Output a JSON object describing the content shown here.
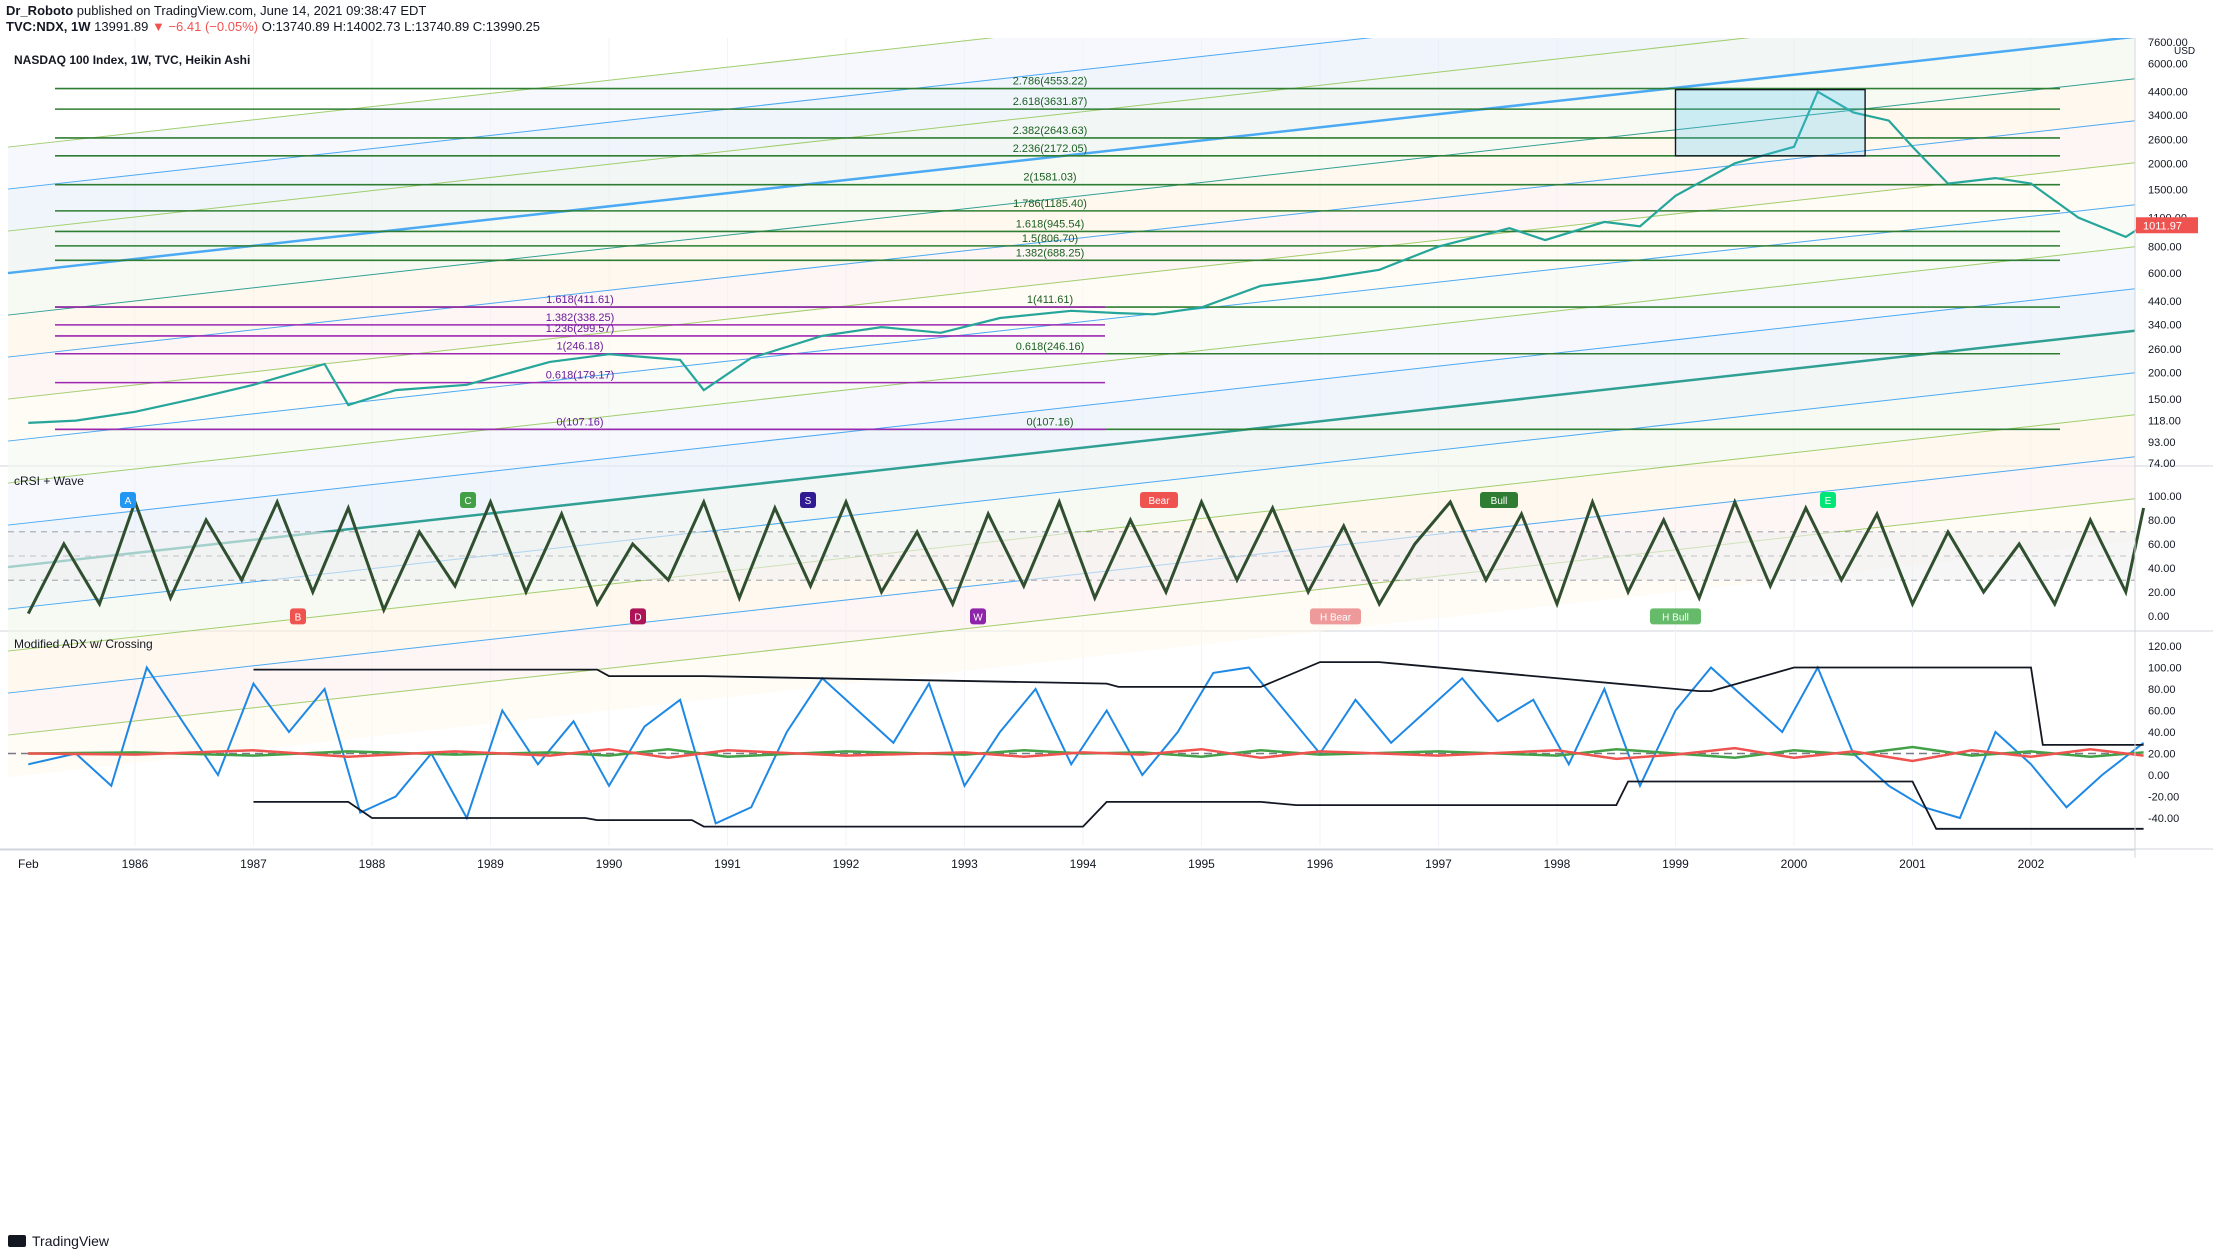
{
  "header": {
    "author": "Dr_Roboto",
    "published": "published on TradingView.com, June 14, 2021 09:38:47 EDT",
    "symbol_line": "TVC:NDX, 1W",
    "last": "13991.89",
    "change": "▼ −6.41 (−0.05%)",
    "ohlc": "O:13740.89 H:14002.73 L:13740.89 C:13990.25"
  },
  "footer": {
    "brand": "TradingView",
    "logo_icon": "tradingview-logo-icon"
  },
  "colors": {
    "grid": "#f0f3fa",
    "fib_green": "#2e7d32",
    "fib_purple": "#9c27b0",
    "fan_blue": "#2196f3",
    "fan_teal": "#00897b",
    "bull": "#26a69a",
    "bear": "#ef5350",
    "adx_blue": "#1e88e5",
    "rsi_line": "#2f4f2f"
  },
  "chart_data": [
    {
      "type": "line",
      "title": "NASDAQ 100 Index, 1W, TVC, Heikin Ashi",
      "xlabel": "",
      "ylabel": "",
      "scale": "log",
      "ylim": [
        74,
        7600
      ],
      "x_ticks": [
        "Feb",
        "1986",
        "1987",
        "1988",
        "1989",
        "1990",
        "1991",
        "1992",
        "1993",
        "1994",
        "1995",
        "1996",
        "1997",
        "1998",
        "1999",
        "2000",
        "2001",
        "2002"
      ],
      "y_ticks": [
        "7600.00",
        "6000.00",
        "4400.00",
        "3400.00",
        "2600.00",
        "2000.00",
        "1500.00",
        "1100.00",
        "800.00",
        "600.00",
        "440.00",
        "340.00",
        "260.00",
        "200.00",
        "150.00",
        "118.00",
        "93.00",
        "74.00"
      ],
      "currency_label": "USD",
      "last_price_label": "1011.97",
      "series": [
        {
          "x": [
            1985.1,
            1985.5,
            1986.0,
            1986.5,
            1987.0,
            1987.6,
            1987.8,
            1988.2,
            1988.8,
            1989.5,
            1990.0,
            1990.6,
            1990.8,
            1991.2,
            1991.8,
            1992.3,
            1992.8,
            1993.3,
            1993.9,
            1994.3,
            1994.6,
            1995.0,
            1995.5,
            1996.0,
            1996.5,
            1997.0,
            1997.6,
            1997.9,
            1998.4,
            1998.7,
            1999.0,
            1999.5,
            2000.0,
            2000.2,
            2000.5,
            2000.8,
            2001.0,
            2001.3,
            2001.7,
            2002.0,
            2002.4,
            2002.8,
            2002.95
          ],
          "y": [
            115,
            118,
            130,
            150,
            175,
            220,
            140,
            165,
            175,
            225,
            245,
            230,
            165,
            235,
            300,
            330,
            310,
            365,
            395,
            385,
            380,
            410,
            520,
            560,
            620,
            800,
            980,
            860,
            1050,
            1000,
            1400,
            2000,
            2400,
            4400,
            3500,
            3200,
            2400,
            1600,
            1700,
            1600,
            1100,
            890,
            1010
          ]
        }
      ],
      "fib_levels_green": [
        {
          "label": "2.786(4553.22)",
          "value": 4553.22
        },
        {
          "label": "2.618(3631.87)",
          "value": 3631.87
        },
        {
          "label": "2.382(2643.63)",
          "value": 2643.63
        },
        {
          "label": "2.236(2172.05)",
          "value": 2172.05
        },
        {
          "label": "2(1581.03)",
          "value": 1581.03
        },
        {
          "label": "1.786(1185.40)",
          "value": 1185.4
        },
        {
          "label": "1.618(945.54)",
          "value": 945.54
        },
        {
          "label": "1.5(806.70)",
          "value": 806.7
        },
        {
          "label": "1.382(688.25)",
          "value": 688.25
        },
        {
          "label": "1(411.61)",
          "value": 411.61
        },
        {
          "label": "0.618(246.16)",
          "value": 246.16
        },
        {
          "label": "0(107.16)",
          "value": 107.16
        }
      ],
      "fib_levels_purple": [
        {
          "label": "1.618(411.61)",
          "value": 411.61
        },
        {
          "label": "1.382(338.25)",
          "value": 338.25
        },
        {
          "label": "1.236(299.57)",
          "value": 299.57
        },
        {
          "label": "1(246.18)",
          "value": 246.18
        },
        {
          "label": "0.618(179.17)",
          "value": 179.17
        },
        {
          "label": "0(107.16)",
          "value": 107.16
        }
      ]
    },
    {
      "type": "line",
      "title": "cRSI + Wave",
      "ylim": [
        0,
        100
      ],
      "y_ticks": [
        "100.00",
        "80.00",
        "60.00",
        "40.00",
        "20.00",
        "0.00"
      ],
      "series": [
        {
          "name": "",
          "x": [
            1985.1,
            1985.4,
            1985.7,
            1986.0,
            1986.3,
            1986.6,
            1986.9,
            1987.2,
            1987.5,
            1987.8,
            1988.1,
            1988.4,
            1988.7,
            1989.0,
            1989.3,
            1989.6,
            1989.9,
            1990.2,
            1990.5,
            1990.8,
            1991.1,
            1991.4,
            1991.7,
            1992.0,
            1992.3,
            1992.6,
            1992.9,
            1993.2,
            1993.5,
            1993.8,
            1994.1,
            1994.4,
            1994.7,
            1995.0,
            1995.3,
            1995.6,
            1995.9,
            1996.2,
            1996.5,
            1996.8,
            1997.1,
            1997.4,
            1997.7,
            1998.0,
            1998.3,
            1998.6,
            1998.9,
            1999.2,
            1999.5,
            1999.8,
            2000.1,
            2000.4,
            2000.7,
            2001.0,
            2001.3,
            2001.6,
            2001.9,
            2002.2,
            2002.5,
            2002.8,
            2002.95
          ],
          "values": [
            2,
            60,
            10,
            95,
            15,
            80,
            30,
            95,
            20,
            90,
            5,
            70,
            25,
            95,
            20,
            85,
            10,
            60,
            30,
            95,
            15,
            90,
            25,
            95,
            20,
            70,
            10,
            85,
            25,
            95,
            15,
            80,
            20,
            95,
            30,
            90,
            20,
            75,
            10,
            60,
            95,
            30,
            85,
            10,
            95,
            20,
            80,
            15,
            95,
            25,
            90,
            30,
            85,
            10,
            70,
            20,
            60,
            10,
            80,
            20,
            90
          ]
        }
      ],
      "badges": [
        "A",
        "B",
        "C",
        "D",
        "S",
        "W",
        "Bear",
        "H Bear",
        "Bull",
        "H Bull",
        "E"
      ]
    },
    {
      "type": "line",
      "title": "Modified ADX w/ Crossing",
      "ylim": [
        -55,
        125
      ],
      "y_ticks": [
        "120.00",
        "100.00",
        "80.00",
        "60.00",
        "40.00",
        "20.00",
        "0.00",
        "-20.00",
        "-40.00"
      ],
      "series": [
        {
          "name": "",
          "x": [
            1985.1,
            1985.5,
            1985.8,
            1986.1,
            1986.4,
            1986.7,
            1987.0,
            1987.3,
            1987.6,
            1987.9,
            1988.2,
            1988.5,
            1988.8,
            1989.1,
            1989.4,
            1989.7,
            1990.0,
            1990.3,
            1990.6,
            1990.9,
            1991.2,
            1991.5,
            1991.8,
            1992.1,
            1992.4,
            1992.7,
            1993.0,
            1993.3,
            1993.6,
            1993.9,
            1994.2,
            1994.5,
            1994.8,
            1995.1,
            1995.4,
            1995.7,
            1996.0,
            1996.3,
            1996.6,
            1996.9,
            1997.2,
            1997.5,
            1997.8,
            1998.1,
            1998.4,
            1998.7,
            1999.0,
            1999.3,
            1999.6,
            1999.9,
            2000.2,
            2000.5,
            2000.8,
            2001.1,
            2001.4,
            2001.7,
            2002.0,
            2002.3,
            2002.6,
            2002.95
          ],
          "values": [
            10,
            20,
            -10,
            100,
            50,
            0,
            85,
            40,
            80,
            -35,
            -20,
            20,
            -40,
            60,
            10,
            50,
            -10,
            45,
            70,
            -45,
            -30,
            40,
            90,
            60,
            30,
            85,
            -10,
            40,
            80,
            10,
            60,
            0,
            40,
            95,
            100,
            60,
            20,
            70,
            30,
            60,
            90,
            50,
            70,
            10,
            80,
            -10,
            60,
            100,
            70,
            40,
            100,
            20,
            -10,
            -30,
            -40,
            40,
            10,
            -30,
            0,
            30
          ]
        },
        {
          "name": "",
          "x": [
            1985.1,
            1986.0,
            1987.0,
            1987.8,
            1988.7,
            1989.5,
            1990.0,
            1990.5,
            1991.0,
            1992.0,
            1993.0,
            1993.5,
            1994.0,
            1994.5,
            1995.0,
            1995.5,
            1996.0,
            1997.0,
            1998.0,
            1998.5,
            1999.0,
            1999.5,
            2000.0,
            2000.5,
            2001.0,
            2001.5,
            2002.0,
            2002.5,
            2002.95
          ],
          "values": [
            20,
            21,
            18,
            22,
            19,
            21,
            18,
            24,
            17,
            22,
            19,
            23,
            20,
            21,
            17,
            23,
            19,
            22,
            18,
            24,
            20,
            16,
            23,
            19,
            26,
            18,
            22,
            17,
            21
          ]
        },
        {
          "name": "",
          "x": [
            1985.1,
            1986.0,
            1987.0,
            1987.8,
            1988.7,
            1989.5,
            1990.0,
            1990.5,
            1991.0,
            1992.0,
            1993.0,
            1993.5,
            1994.0,
            1994.5,
            1995.0,
            1995.5,
            1996.0,
            1997.0,
            1998.0,
            1998.5,
            1999.0,
            1999.5,
            2000.0,
            2000.5,
            2001.0,
            2001.5,
            2002.0,
            2002.5,
            2002.95
          ],
          "values": [
            20,
            19,
            23,
            17,
            22,
            18,
            24,
            16,
            23,
            18,
            21,
            17,
            21,
            19,
            24,
            16,
            22,
            18,
            23,
            15,
            19,
            25,
            16,
            22,
            13,
            23,
            17,
            24,
            18
          ]
        },
        {
          "name": "",
          "x": [
            1987.0,
            1989.9,
            1990.0,
            1990.8,
            1994.2,
            1994.3,
            1995.5,
            1996.0,
            1996.5,
            1999.2,
            1999.3,
            2000.0,
            2002.0,
            2002.1,
            2002.95
          ],
          "values": [
            98,
            98,
            92,
            92,
            85,
            82,
            82,
            105,
            105,
            78,
            78,
            100,
            100,
            28,
            28
          ]
        },
        {
          "name": "",
          "x": [
            1987.0,
            1987.8,
            1988.0,
            1989.8,
            1989.9,
            1990.7,
            1990.8,
            1994.0,
            1994.2,
            1995.5,
            1995.8,
            1998.5,
            1998.6,
            2001.0,
            2001.2,
            2002.95
          ],
          "values": [
            -25,
            -25,
            -40,
            -40,
            -42,
            -42,
            -48,
            -48,
            -25,
            -25,
            -28,
            -28,
            -6,
            -6,
            -50,
            -50
          ]
        }
      ]
    }
  ]
}
